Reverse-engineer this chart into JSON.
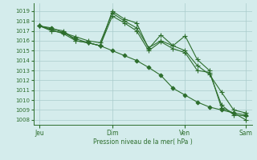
{
  "bg_color": "#d4ecec",
  "grid_color": "#aacccc",
  "line_color": "#2d6e2d",
  "ylabel": "Pression niveau de la mer( hPa )",
  "ylim": [
    1007.5,
    1019.8
  ],
  "yticks": [
    1008,
    1009,
    1010,
    1011,
    1012,
    1013,
    1014,
    1015,
    1016,
    1017,
    1018,
    1019
  ],
  "x_tick_labels": [
    "Jeu",
    "Dim",
    "Ven",
    "Sam"
  ],
  "x_tick_positions": [
    0,
    6,
    12,
    17
  ],
  "series": [
    [
      1017.5,
      1017.3,
      1016.8,
      1016.2,
      1015.8,
      1015.5,
      1015.0,
      1014.5,
      1014.0,
      1013.3,
      1012.5,
      1011.2,
      1010.5,
      1009.8,
      1009.3,
      1009.0,
      1008.7,
      1008.5
    ],
    [
      1017.5,
      1017.2,
      1017.0,
      1016.0,
      1015.8,
      1015.5,
      1019.0,
      1018.2,
      1017.8,
      1015.2,
      1016.6,
      1015.5,
      1016.5,
      1014.1,
      1013.0,
      1009.2,
      1008.7,
      1008.0
    ],
    [
      1017.5,
      1017.1,
      1016.7,
      1016.0,
      1015.8,
      1015.5,
      1018.5,
      1017.8,
      1017.0,
      1015.0,
      1015.9,
      1015.2,
      1014.8,
      1013.0,
      1012.8,
      1009.5,
      1008.5,
      1008.4
    ],
    [
      1017.5,
      1017.0,
      1016.8,
      1016.4,
      1016.0,
      1015.8,
      1018.8,
      1018.0,
      1017.3,
      1015.3,
      1016.0,
      1015.5,
      1015.0,
      1013.5,
      1012.6,
      1010.8,
      1009.0,
      1008.7
    ]
  ],
  "n_points": 18
}
